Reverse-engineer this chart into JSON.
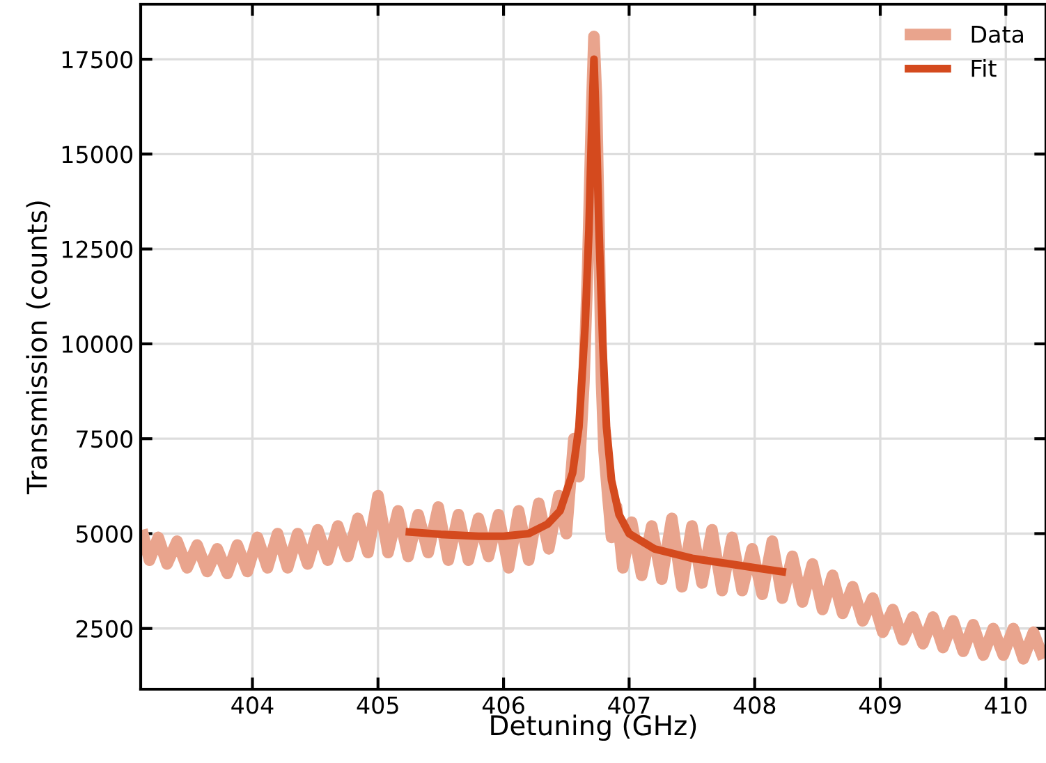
{
  "chart_data": {
    "type": "line",
    "xlabel": "Detuning (GHz)",
    "ylabel": "Transmission (counts)",
    "xlim": [
      403.11,
      410.32
    ],
    "ylim": [
      900,
      18950
    ],
    "xticks": [
      404,
      405,
      406,
      407,
      408,
      409,
      410
    ],
    "yticks": [
      2500,
      5000,
      7500,
      10000,
      12500,
      15000,
      17500
    ],
    "grid": true,
    "legend": "top right",
    "line_style": "solid",
    "series": [
      {
        "name": "Data",
        "color": "#e9a48d",
        "x": [
          403.12,
          403.18,
          403.25,
          403.32,
          403.4,
          403.48,
          403.56,
          403.64,
          403.72,
          403.8,
          403.88,
          403.96,
          404.04,
          404.12,
          404.2,
          404.28,
          404.36,
          404.44,
          404.52,
          404.6,
          404.68,
          404.76,
          404.84,
          404.92,
          405.0,
          405.08,
          405.16,
          405.24,
          405.32,
          405.4,
          405.48,
          405.56,
          405.64,
          405.72,
          405.8,
          405.88,
          405.96,
          406.04,
          406.12,
          406.2,
          406.28,
          406.36,
          406.44,
          406.5,
          406.56,
          406.6,
          406.64,
          406.67,
          406.7,
          406.72,
          406.74,
          406.76,
          406.78,
          406.8,
          406.83,
          406.86,
          406.9,
          406.95,
          407.02,
          407.1,
          407.18,
          407.26,
          407.34,
          407.42,
          407.5,
          407.58,
          407.66,
          407.74,
          407.82,
          407.9,
          407.98,
          408.06,
          408.14,
          408.22,
          408.3,
          408.38,
          408.46,
          408.54,
          408.62,
          408.7,
          408.78,
          408.86,
          408.94,
          409.02,
          409.1,
          409.18,
          409.26,
          409.34,
          409.42,
          409.5,
          409.58,
          409.66,
          409.74,
          409.82,
          409.9,
          409.98,
          410.06,
          410.14,
          410.22,
          410.3
        ],
        "values": [
          5100,
          4300,
          4900,
          4200,
          4800,
          4100,
          4700,
          4000,
          4600,
          3950,
          4700,
          4000,
          4900,
          4100,
          5000,
          4100,
          5000,
          4200,
          5100,
          4300,
          5200,
          4400,
          5400,
          4500,
          6000,
          4500,
          5600,
          4400,
          5500,
          4500,
          5700,
          4300,
          5500,
          4300,
          5400,
          4400,
          5500,
          4100,
          5600,
          4300,
          5800,
          4600,
          6000,
          5000,
          7500,
          6500,
          9000,
          12000,
          16000,
          18100,
          16500,
          13000,
          9000,
          7200,
          6000,
          4900,
          5700,
          4100,
          5300,
          3900,
          5200,
          3800,
          5400,
          3600,
          5200,
          3700,
          5100,
          3500,
          4900,
          3500,
          4600,
          3400,
          4800,
          3300,
          4400,
          3200,
          4200,
          3000,
          3900,
          2900,
          3600,
          2700,
          3300,
          2400,
          3000,
          2200,
          2800,
          2100,
          2800,
          2000,
          2700,
          1900,
          2600,
          1800,
          2500,
          1800,
          2500,
          1700,
          2400,
          1700
        ]
      },
      {
        "name": "Fit",
        "color": "#d44a1e",
        "x": [
          405.22,
          405.5,
          405.8,
          406.0,
          406.2,
          406.35,
          406.45,
          406.55,
          406.6,
          406.65,
          406.68,
          406.7,
          406.72,
          406.74,
          406.76,
          406.79,
          406.82,
          406.86,
          406.92,
          407.0,
          407.2,
          407.5,
          407.8,
          408.0,
          408.25
        ],
        "values": [
          5050,
          4980,
          4930,
          4930,
          5000,
          5250,
          5600,
          6600,
          7800,
          10500,
          13000,
          15500,
          17500,
          15500,
          13000,
          10000,
          7800,
          6400,
          5500,
          5000,
          4600,
          4350,
          4200,
          4100,
          3980
        ]
      }
    ]
  }
}
